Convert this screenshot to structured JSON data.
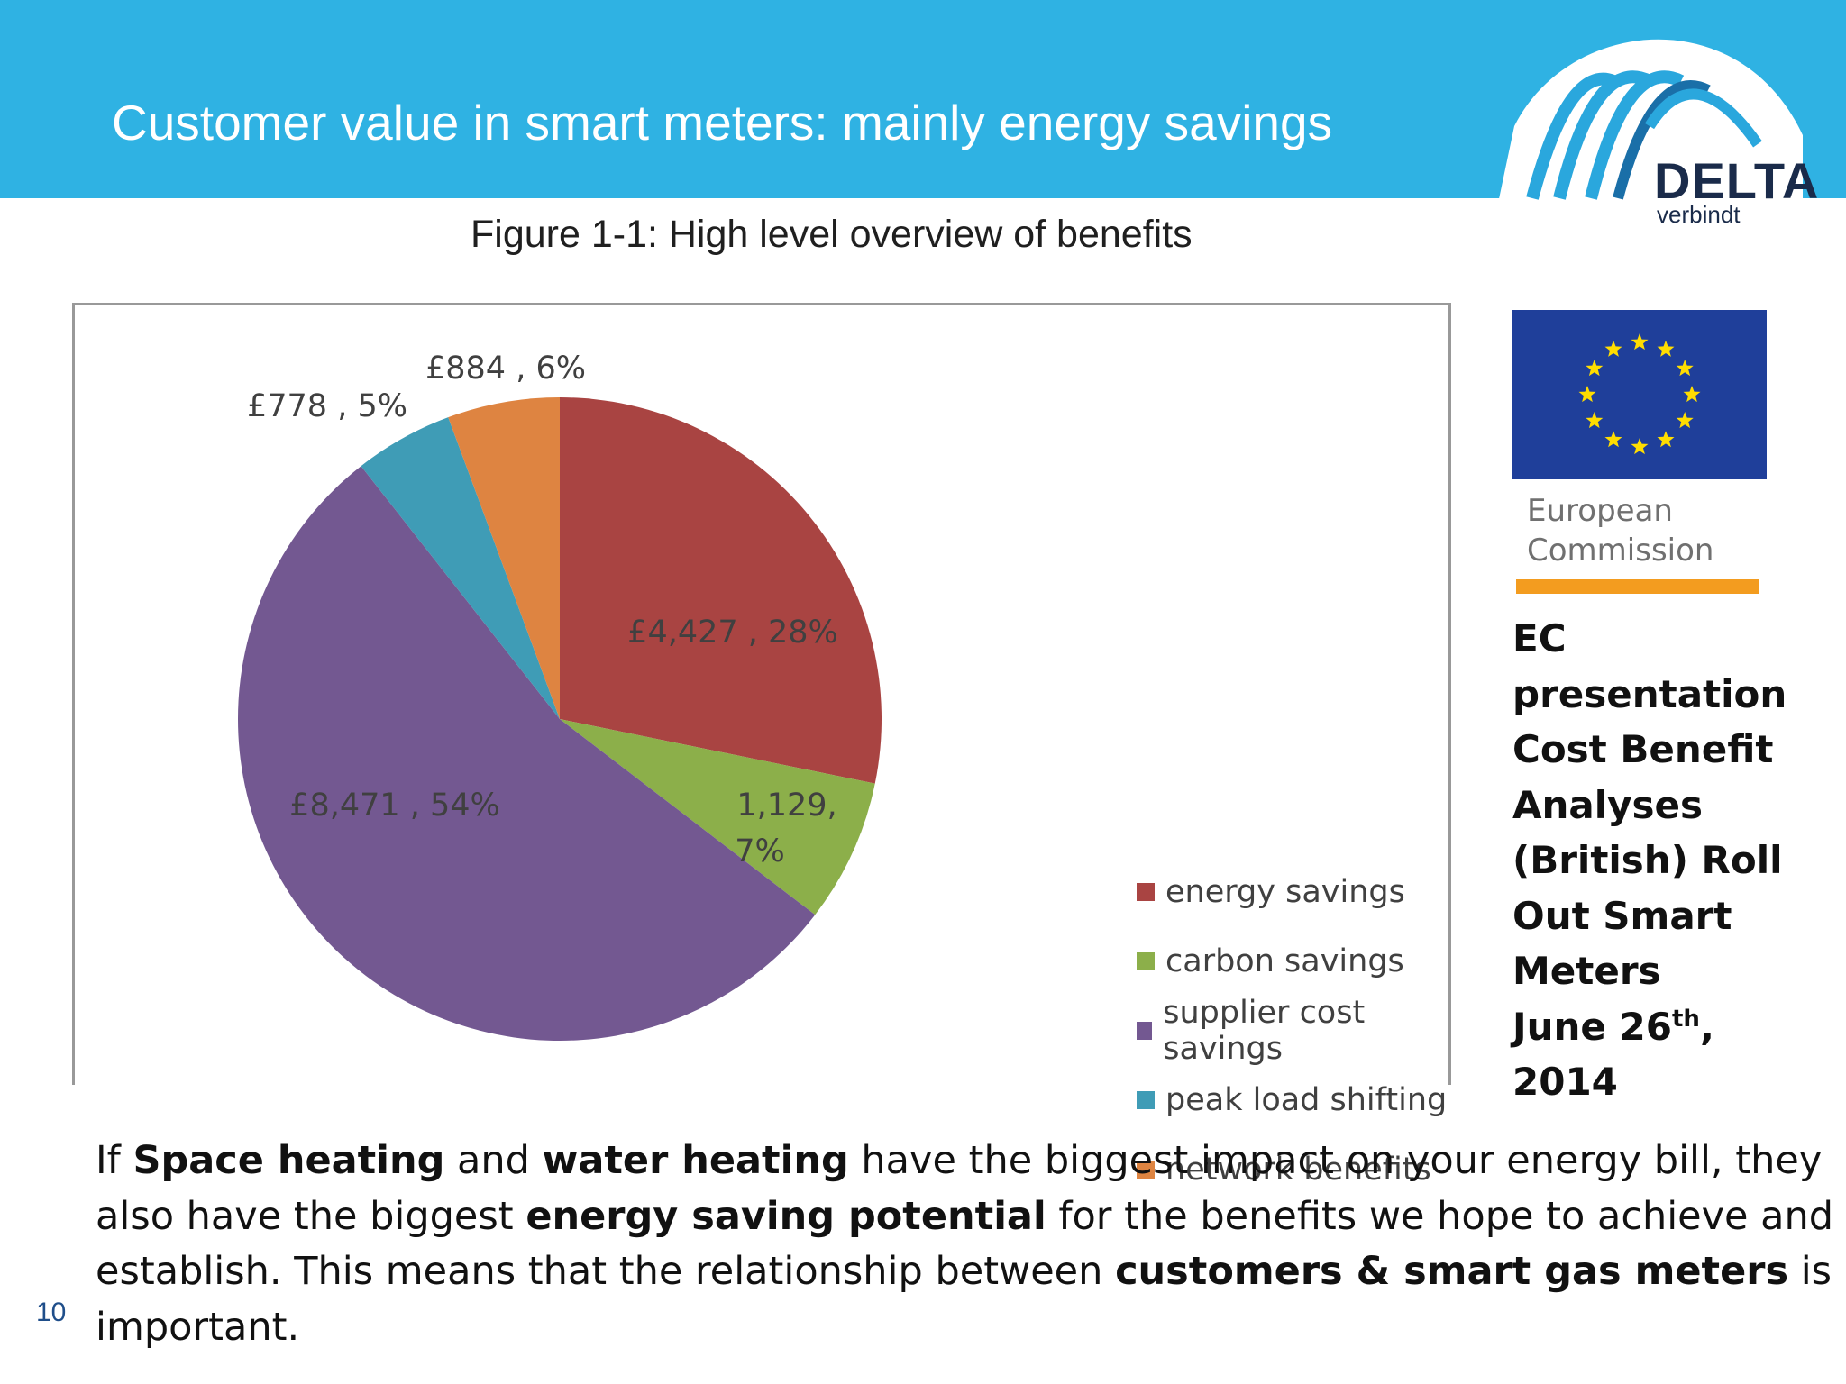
{
  "slide": {
    "title": "Customer value in smart meters: mainly energy savings",
    "page_number": "10"
  },
  "logo": {
    "word": "DELTA",
    "sub": "verbindt"
  },
  "figure": {
    "caption": "Figure 1-1: High level overview of benefits"
  },
  "chart_data": {
    "type": "pie",
    "title": "",
    "slices": [
      {
        "name": "energy savings",
        "value": 4427,
        "percent": 28,
        "label_value": "£4,427",
        "label_pct": "28%",
        "color": "#a94442"
      },
      {
        "name": "carbon savings",
        "value": 1129,
        "percent": 7,
        "label_value": "1,129",
        "label_pct": "7%",
        "color": "#8caf4a"
      },
      {
        "name": "supplier cost savings",
        "value": 8471,
        "percent": 54,
        "label_value": "£8,471",
        "label_pct": "54%",
        "color": "#735891"
      },
      {
        "name": "peak load shifting",
        "value": 778,
        "percent": 5,
        "label_value": "£778",
        "label_pct": "5%",
        "color": "#3f9cb6"
      },
      {
        "name": "network benefits",
        "value": 884,
        "percent": 6,
        "label_value": "£884",
        "label_pct": "6%",
        "color": "#de8441"
      }
    ],
    "legend_position": "right"
  },
  "ec": {
    "logo_text_1": "European",
    "logo_text_2": "Commission",
    "note_line_1": "EC",
    "note_line_2": "presentation",
    "note_line_3": "Cost Benefit",
    "note_line_4": "Analyses",
    "note_line_5": "(British) Roll",
    "note_line_6": "Out Smart",
    "note_line_7": "Meters",
    "note_line_8_pre": "June 26",
    "note_line_8_sup": "th",
    "note_line_8_post": ",",
    "note_line_9": "2014",
    "flag_color": "#1f3f9a",
    "star_color": "#ffdd00",
    "orange_bar_color": "#f39c1f"
  },
  "body": {
    "p1": "If ",
    "p1_b1": "Space heating",
    "p1_m1": " and ",
    "p1_b2": "water heating",
    "p1_m2": " have the biggest impact on your energy bill, they also have the biggest ",
    "p1_b3": "energy saving potential",
    "p1_m3": " for the benefits we hope to achieve and establish. This means that the relationship between ",
    "p1_b4": "customers & smart gas meters",
    "p1_end": " is important."
  },
  "colors": {
    "header": "#2fb2e3",
    "logo_arc": "#2aa7dd",
    "logo_text": "#1a2b4a"
  }
}
